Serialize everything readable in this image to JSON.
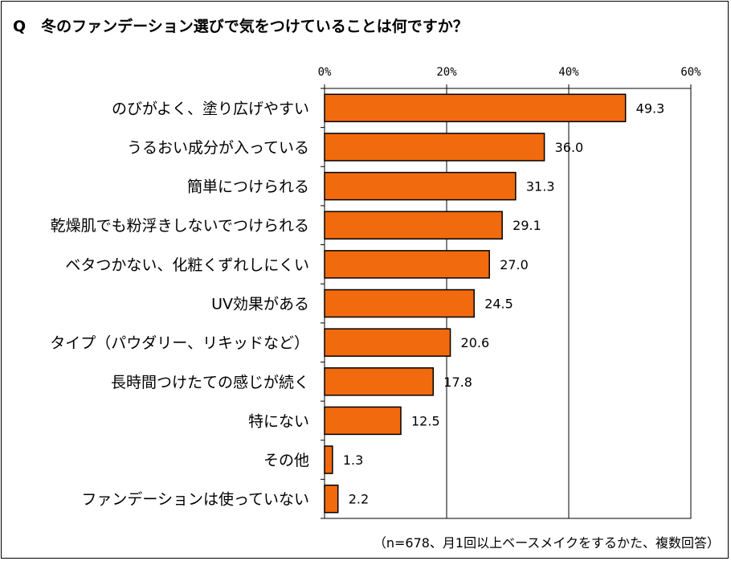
{
  "title": "Q　冬のファンデーション選びで気をつけていることは何ですか？",
  "note": "（n=678、月1回以上ベースメイクをするかた、複数回答）",
  "colors": {
    "bar": "#f26a0e",
    "bar_stroke": "#000000",
    "grid": "#000000"
  },
  "chart_data": {
    "type": "bar",
    "orientation": "horizontal",
    "title": "Q　冬のファンデーション選びで気をつけていることは何ですか？",
    "categories": [
      "のびがよく、塗り広げやすい",
      "うるおい成分が入っている",
      "簡単につけられる",
      "乾燥肌でも粉浮きしないでつけられる",
      "ベタつかない、化粧くずれしにくい",
      "UV効果がある",
      "タイプ（パウダリー、リキッドなど）",
      "長時間つけたての感じが続く",
      "特にない",
      "その他",
      "ファンデーションは使っていない"
    ],
    "values": [
      49.3,
      36.0,
      31.3,
      29.1,
      27.0,
      24.5,
      20.6,
      17.8,
      12.5,
      1.3,
      2.2
    ],
    "value_labels": [
      "49.3",
      "36.0",
      "31.3",
      "29.1",
      "27.0",
      "24.5",
      "20.6",
      "17.8",
      "12.5",
      "1.3",
      "2.2"
    ],
    "xlim": [
      0,
      60
    ],
    "xticks": [
      0,
      20,
      40,
      60
    ],
    "xtick_labels": [
      "0%",
      "20%",
      "40%",
      "60%"
    ],
    "axis_position": "top",
    "grid": true
  }
}
